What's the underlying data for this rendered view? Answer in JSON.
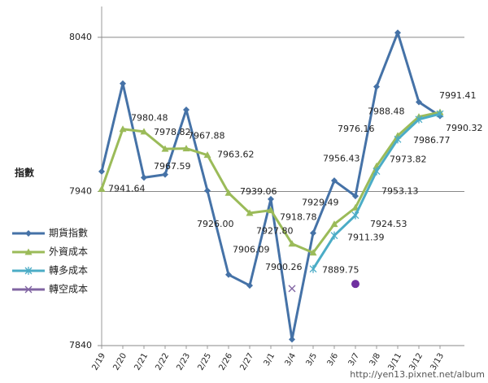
{
  "chart_data": {
    "type": "line",
    "y_label": "指數",
    "watermark": "http://yen13.pixnet.net/album",
    "categories": [
      "2/19",
      "2/20",
      "2/21",
      "2/22",
      "2/23",
      "2/25",
      "2/26",
      "2/27",
      "3/1",
      "3/4",
      "3/5",
      "3/6",
      "3/7",
      "3/8",
      "3/11",
      "3/12",
      "3/13"
    ],
    "ylim": [
      7840,
      8060
    ],
    "yticks": [
      7840,
      7940,
      8040
    ],
    "grid": true,
    "legend": "left",
    "series": [
      {
        "name": "期貨指數",
        "color": "#4572a7",
        "marker": "diamond",
        "values": [
          7953,
          8010,
          7949,
          7951,
          7993,
          7940.5,
          7886,
          7879,
          7935,
          7844,
          7913,
          7947,
          7937,
          8008,
          8043,
          7998,
          7989
        ]
      },
      {
        "name": "外資成本",
        "color": "#9bbb59",
        "marker": "triangle",
        "values": [
          7941.64,
          7980.48,
          7978.82,
          7967.59,
          7967.88,
          7963.62,
          7939.06,
          7926,
          7927.8,
          7906.09,
          7900.26,
          7918.78,
          7929.49,
          7956.43,
          7976.16,
          7988.48,
          7991.41
        ],
        "value_labels": [
          "7941.64",
          "7980.48",
          "7978.82",
          "7967.59",
          "7967.88",
          "7963.62",
          "7939.06",
          "7926.00",
          "7927.80",
          "7906.09",
          "7900.26",
          "7918.78",
          "7929.49",
          "7956.43",
          "7976.16",
          "7988.48",
          "7991.41"
        ]
      },
      {
        "name": "轉多成本",
        "color": "#4bacc6",
        "marker": "star",
        "values": [
          null,
          null,
          null,
          null,
          null,
          null,
          null,
          null,
          null,
          null,
          7889.75,
          7911.39,
          7924.53,
          7953.13,
          7973.82,
          7986.77,
          7990.32
        ],
        "value_labels": [
          null,
          null,
          null,
          null,
          null,
          null,
          null,
          null,
          null,
          null,
          "7889.75",
          "7911.39",
          "7924.53",
          "7953.13",
          "7973.82",
          "7986.77",
          "7990.32"
        ]
      },
      {
        "name": "轉空成本",
        "color": "#8064a2",
        "marker": "x",
        "values": [
          null,
          null,
          null,
          null,
          null,
          null,
          null,
          null,
          null,
          7877,
          null,
          null,
          null,
          null,
          null,
          null,
          null
        ]
      },
      {
        "color": "#7030a0",
        "marker": "circle",
        "values": [
          null,
          null,
          null,
          null,
          null,
          null,
          null,
          null,
          null,
          null,
          null,
          null,
          7880,
          null,
          null,
          null,
          null
        ]
      }
    ]
  }
}
